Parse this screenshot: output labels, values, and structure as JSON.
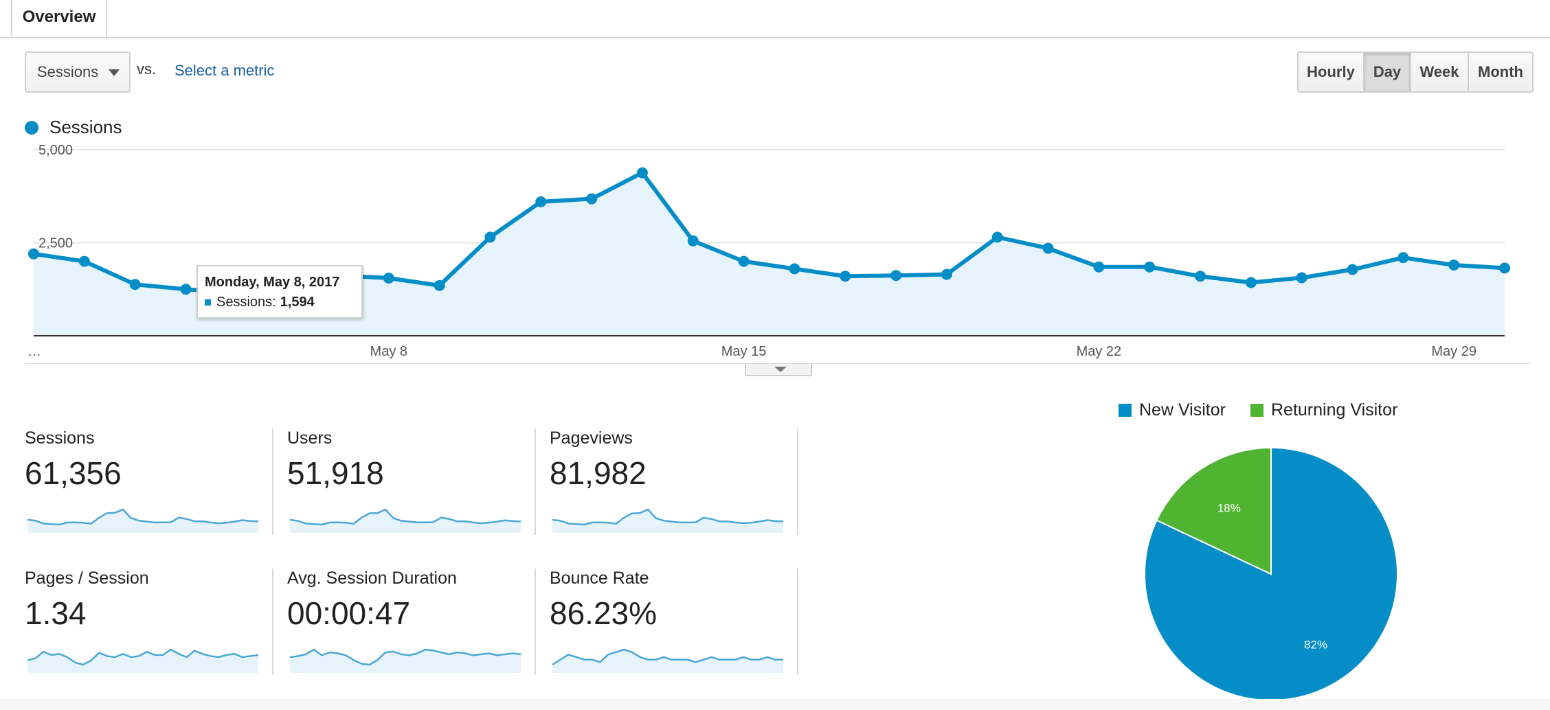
{
  "tabs": {
    "overview": "Overview"
  },
  "controls": {
    "metric_select": "Sessions",
    "vs": "vs.",
    "select_metric": "Select a metric",
    "periods": [
      "Hourly",
      "Day",
      "Week",
      "Month"
    ],
    "active_period": "Day"
  },
  "tooltip": {
    "date": "Monday, May 8, 2017",
    "label": "Sessions:",
    "value": "1,594"
  },
  "colors": {
    "sessions": "#058dc7",
    "new_visitor": "#058dc7",
    "returning_visitor": "#50b432",
    "fill": "#e6f3fa"
  },
  "chart_data": [
    {
      "type": "line",
      "legend": [
        "Sessions"
      ],
      "y_ticks": [
        "5,000",
        "2,500"
      ],
      "ylim": [
        0,
        5000
      ],
      "x_tick_labels": [
        "…",
        "May 8",
        "May 15",
        "May 22",
        "May 29"
      ],
      "series": [
        {
          "name": "Sessions",
          "values": [
            2200,
            2000,
            1380,
            1250,
            1150,
            1594,
            1620,
            1550,
            1350,
            2650,
            3600,
            3680,
            4380,
            2550,
            2000,
            1800,
            1600,
            1620,
            1650,
            2650,
            2350,
            1850,
            1850,
            1600,
            1430,
            1560,
            1780,
            2100,
            1900,
            1820
          ]
        }
      ]
    },
    {
      "type": "pie",
      "legend": [
        "New Visitor",
        "Returning Visitor"
      ],
      "values": [
        82,
        18
      ],
      "labels": [
        "82%",
        "18%"
      ]
    }
  ],
  "stats": [
    {
      "label": "Sessions",
      "value": "61,356"
    },
    {
      "label": "Users",
      "value": "51,918"
    },
    {
      "label": "Pageviews",
      "value": "81,982"
    },
    {
      "label": "Pages / Session",
      "value": "1.34"
    },
    {
      "label": "Avg. Session Duration",
      "value": "00:00:47"
    },
    {
      "label": "Bounce Rate",
      "value": "86.23%"
    }
  ],
  "sparklines": [
    [
      2200,
      2000,
      1380,
      1250,
      1150,
      1594,
      1620,
      1550,
      1350,
      2650,
      3600,
      3680,
      4380,
      2550,
      2000,
      1800,
      1600,
      1620,
      1650,
      2650,
      2350,
      1850,
      1850,
      1600,
      1430,
      1560,
      1780,
      2100,
      1900,
      1820
    ],
    [
      1900,
      1700,
      1200,
      1100,
      1000,
      1400,
      1420,
      1350,
      1150,
      2300,
      3100,
      3150,
      3800,
      2200,
      1700,
      1550,
      1400,
      1420,
      1450,
      2300,
      2050,
      1600,
      1600,
      1400,
      1250,
      1350,
      1550,
      1800,
      1650,
      1580
    ],
    [
      2900,
      2650,
      1850,
      1700,
      1550,
      2150,
      2180,
      2080,
      1800,
      3500,
      4700,
      4800,
      5800,
      3400,
      2650,
      2400,
      2150,
      2150,
      2200,
      3500,
      3100,
      2450,
      2450,
      2150,
      1950,
      2100,
      2400,
      2800,
      2550,
      2450
    ],
    [
      1.3,
      1.32,
      1.38,
      1.35,
      1.36,
      1.33,
      1.28,
      1.26,
      1.3,
      1.37,
      1.34,
      1.33,
      1.36,
      1.33,
      1.34,
      1.38,
      1.35,
      1.35,
      1.4,
      1.36,
      1.33,
      1.39,
      1.36,
      1.34,
      1.33,
      1.35,
      1.36,
      1.33,
      1.34,
      1.35
    ],
    [
      44,
      45,
      47,
      52,
      46,
      49,
      48,
      46,
      41,
      37,
      36,
      41,
      49,
      50,
      47,
      46,
      48,
      52,
      51,
      49,
      47,
      49,
      48,
      46,
      47,
      48,
      46,
      47,
      48,
      47
    ],
    [
      86.0,
      86.2,
      86.4,
      86.3,
      86.2,
      86.2,
      86.1,
      86.4,
      86.5,
      86.6,
      86.5,
      86.3,
      86.2,
      86.2,
      86.3,
      86.2,
      86.2,
      86.2,
      86.1,
      86.2,
      86.3,
      86.2,
      86.2,
      86.2,
      86.3,
      86.2,
      86.2,
      86.3,
      86.2,
      86.2
    ]
  ]
}
